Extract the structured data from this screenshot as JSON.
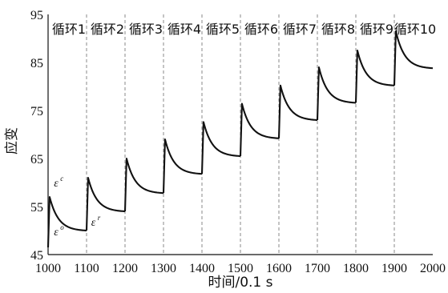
{
  "chart_data": {
    "type": "line",
    "title": "",
    "xlabel": "时间/0.1 s",
    "ylabel": "应变",
    "xlim": [
      1000,
      2000
    ],
    "ylim": [
      45,
      95
    ],
    "xticks": [
      1000,
      1100,
      1200,
      1300,
      1400,
      1500,
      1600,
      1700,
      1800,
      1900,
      2000
    ],
    "yticks": [
      45,
      55,
      65,
      75,
      85,
      95
    ],
    "grid": "vertical dashed lines at 100-step intervals",
    "cycle_labels": [
      "循环1",
      "循环2",
      "循环3",
      "循环4",
      "循环5",
      "循环6",
      "循环7",
      "循环8",
      "循环9",
      "循环10"
    ],
    "cycles": [
      {
        "start": 1000,
        "end": 1100,
        "base": 46.5,
        "peak": 57.0,
        "end_value": 50.0
      },
      {
        "start": 1100,
        "end": 1200,
        "base": 50.0,
        "peak": 61.0,
        "end_value": 54.0
      },
      {
        "start": 1200,
        "end": 1300,
        "base": 54.0,
        "peak": 65.0,
        "end_value": 57.8
      },
      {
        "start": 1300,
        "end": 1400,
        "base": 57.8,
        "peak": 69.0,
        "end_value": 61.8
      },
      {
        "start": 1400,
        "end": 1500,
        "base": 61.8,
        "peak": 72.6,
        "end_value": 65.5
      },
      {
        "start": 1500,
        "end": 1600,
        "base": 65.5,
        "peak": 76.4,
        "end_value": 69.2
      },
      {
        "start": 1600,
        "end": 1700,
        "base": 69.2,
        "peak": 80.2,
        "end_value": 73.0
      },
      {
        "start": 1700,
        "end": 1800,
        "base": 73.0,
        "peak": 84.0,
        "end_value": 76.6
      },
      {
        "start": 1800,
        "end": 1900,
        "base": 76.6,
        "peak": 87.5,
        "end_value": 80.2
      },
      {
        "start": 1900,
        "end": 2000,
        "base": 80.2,
        "peak": 91.5,
        "end_value": 83.8
      }
    ],
    "annotations": [
      {
        "symbol": "ε",
        "sup": "c",
        "x": 1015,
        "y": 59.2
      },
      {
        "symbol": "ε",
        "sup": "o",
        "x": 1015,
        "y": 49.0
      },
      {
        "symbol": "ε",
        "sup": "r",
        "x": 1112,
        "y": 51.0
      }
    ]
  }
}
